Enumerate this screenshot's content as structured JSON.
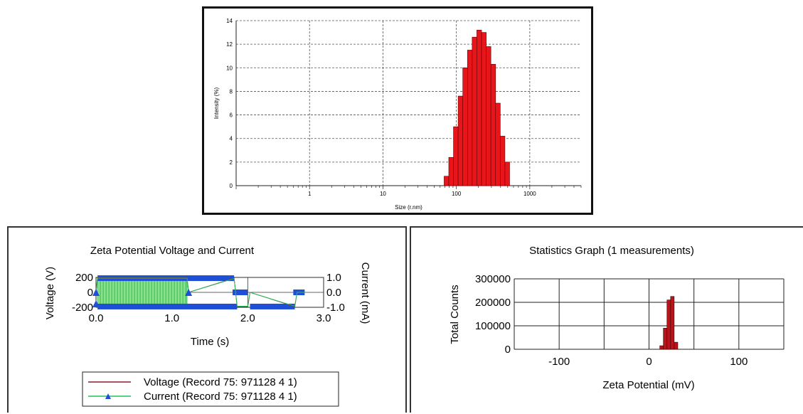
{
  "colors": {
    "bar_red": "#e8151b",
    "bar_dark_red": "#b8141c",
    "voltage_line": "#8a1a2c",
    "current_line": "#27c05a",
    "current_marker": "#1f4fd6",
    "fill_green": "#8be08a",
    "grid": "#555555"
  },
  "chart_data": [
    {
      "id": "size_distribution",
      "type": "bar",
      "title": "",
      "xlabel": "Size (r.nm)",
      "ylabel": "Intensity (%)",
      "x_scale": "log",
      "xlim": [
        0.1,
        5000
      ],
      "ylim": [
        0,
        14
      ],
      "xticks": [
        "1",
        "10",
        "100",
        "1000"
      ],
      "yticks": [
        "0",
        "2",
        "4",
        "6",
        "8",
        "10",
        "12",
        "14"
      ],
      "grid": true,
      "bin_edges": [
        68.1,
        78.8,
        91.3,
        105.7,
        122.4,
        141.8,
        164.2,
        190.1,
        220.2,
        255.0,
        295.3,
        342.0,
        396.1,
        458.7,
        531.2
      ],
      "values": [
        0.8,
        2.4,
        5.0,
        7.6,
        10.0,
        11.5,
        12.6,
        13.2,
        13.0,
        11.8,
        10.3,
        7.0,
        4.2,
        2.0,
        0.6
      ]
    },
    {
      "id": "zeta_voltage_current",
      "type": "line",
      "title": "Zeta Potential Voltage and Current",
      "xlabel": "Time (s)",
      "ylabel_left": "Voltage (V)",
      "ylabel_right": "Current (mA)",
      "xlim": [
        0,
        3
      ],
      "ylim_left": [
        -200,
        200
      ],
      "ylim_right": [
        -1.0,
        1.0
      ],
      "xticks": [
        "0.0",
        "1.0",
        "2.0",
        "3.0"
      ],
      "yticks_left": [
        "-200",
        "0",
        "200"
      ],
      "yticks_right": [
        "-1.0",
        "0.0",
        "1.0"
      ],
      "grid": true,
      "legend_position": "bottom",
      "series": [
        {
          "name": "Voltage (Record 75: 971128 4 1)",
          "x": [
            0.0,
            0.02,
            1.2,
            1.22,
            1.82,
            1.86,
            2.0,
            2.03,
            2.62,
            2.65,
            2.75
          ],
          "y": [
            0,
            195,
            195,
            0,
            190,
            -190,
            -190,
            0,
            -190,
            0,
            0
          ]
        },
        {
          "name": "Current (Record 75: 971128 4 1)",
          "x": [
            0.0,
            0.02,
            1.2,
            1.22,
            1.82,
            1.86,
            2.0,
            2.03,
            2.62,
            2.65,
            2.75
          ],
          "y": [
            0.0,
            0.95,
            0.95,
            0.0,
            0.93,
            -0.93,
            -0.93,
            0.0,
            -0.93,
            0.0,
            0.0
          ]
        }
      ]
    },
    {
      "id": "statistics_graph",
      "type": "bar",
      "title": "Statistics Graph (1 measurements)",
      "xlabel": "Zeta Potential (mV)",
      "ylabel": "Total Counts",
      "xlim": [
        -150,
        150
      ],
      "ylim": [
        0,
        300000
      ],
      "xticks": [
        "-100",
        "0",
        "100"
      ],
      "yticks": [
        "0",
        "100000",
        "200000",
        "300000"
      ],
      "grid": true,
      "bin_edges": [
        12,
        16,
        20,
        24,
        28,
        32
      ],
      "values": [
        15000,
        90000,
        210000,
        225000,
        30000
      ]
    }
  ]
}
